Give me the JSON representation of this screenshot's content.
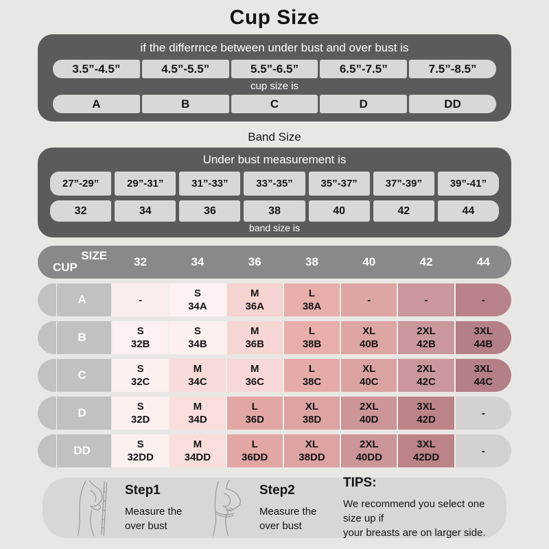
{
  "cup_section": {
    "title": "Cup Size",
    "condition": "if the differrnce between under bust and over bust is",
    "ranges": [
      "3.5”-4.5”",
      "4.5”-5.5”",
      "5.5”-6.5”",
      "6.5”-7.5”",
      "7.5”-8.5”"
    ],
    "result_label": "cup size is",
    "cups": [
      "A",
      "B",
      "C",
      "D",
      "DD"
    ]
  },
  "band_section": {
    "title": "Band Size",
    "condition": "Under bust measurement is",
    "ranges": [
      "27”-29”",
      "29”-31”",
      "31”-33”",
      "33”-35”",
      "35”-37”",
      "37”-39”",
      "39”-41”"
    ],
    "sizes": [
      "32",
      "34",
      "36",
      "38",
      "40",
      "42",
      "44"
    ],
    "result_label": "band size is"
  },
  "matrix": {
    "corner_top": "SIZE",
    "corner_bottom": "CUP",
    "columns": [
      "32",
      "34",
      "36",
      "38",
      "40",
      "42",
      "44"
    ],
    "rows": [
      {
        "cup": "A",
        "cells": [
          {
            "size": "-",
            "code": "",
            "bg": "#fbedec"
          },
          {
            "size": "S",
            "code": "34A",
            "bg": "#fdf2f1"
          },
          {
            "size": "M",
            "code": "36A",
            "bg": "#f5d3d1"
          },
          {
            "size": "L",
            "code": "38A",
            "bg": "#e7aeac"
          },
          {
            "size": "-",
            "code": "",
            "bg": "#dda5a4"
          },
          {
            "size": "-",
            "code": "",
            "bg": "#c9979c"
          },
          {
            "size": "-",
            "code": "",
            "bg": "#b98189"
          }
        ]
      },
      {
        "cup": "B",
        "cells": [
          {
            "size": "S",
            "code": "32B",
            "bg": "#fdf2f1"
          },
          {
            "size": "S",
            "code": "34B",
            "bg": "#fdf0ef"
          },
          {
            "size": "M",
            "code": "36B",
            "bg": "#f6d6d4"
          },
          {
            "size": "L",
            "code": "38B",
            "bg": "#e7aeac"
          },
          {
            "size": "XL",
            "code": "40B",
            "bg": "#dda5a4"
          },
          {
            "size": "2XL",
            "code": "42B",
            "bg": "#c9979c"
          },
          {
            "size": "3XL",
            "code": "44B",
            "bg": "#b57f87"
          }
        ]
      },
      {
        "cup": "C",
        "cells": [
          {
            "size": "S",
            "code": "32C",
            "bg": "#fdf1f0"
          },
          {
            "size": "M",
            "code": "34C",
            "bg": "#f8dbd9"
          },
          {
            "size": "M",
            "code": "36C",
            "bg": "#f7d8d6"
          },
          {
            "size": "L",
            "code": "38C",
            "bg": "#e5abaa"
          },
          {
            "size": "XL",
            "code": "40C",
            "bg": "#dba2a2"
          },
          {
            "size": "2XL",
            "code": "42C",
            "bg": "#c9979c"
          },
          {
            "size": "3XL",
            "code": "44C",
            "bg": "#b57f87"
          }
        ]
      },
      {
        "cup": "D",
        "cells": [
          {
            "size": "S",
            "code": "32D",
            "bg": "#fdf1f0"
          },
          {
            "size": "M",
            "code": "34D",
            "bg": "#f9dedc"
          },
          {
            "size": "L",
            "code": "36D",
            "bg": "#e2a7a5"
          },
          {
            "size": "XL",
            "code": "38D",
            "bg": "#dca3a2"
          },
          {
            "size": "2XL",
            "code": "40D",
            "bg": "#cc9598"
          },
          {
            "size": "3XL",
            "code": "42D",
            "bg": "#bc8389"
          },
          {
            "size": "-",
            "code": "",
            "bg": "#d2d1d0"
          }
        ]
      },
      {
        "cup": "DD",
        "cells": [
          {
            "size": "S",
            "code": "32DD",
            "bg": "#fdf1f0"
          },
          {
            "size": "M",
            "code": "34DD",
            "bg": "#f9dedc"
          },
          {
            "size": "L",
            "code": "36DD",
            "bg": "#e2a7a5"
          },
          {
            "size": "XL",
            "code": "38DD",
            "bg": "#dca3a2"
          },
          {
            "size": "2XL",
            "code": "40DD",
            "bg": "#cc9598"
          },
          {
            "size": "3XL",
            "code": "42DD",
            "bg": "#bc8389"
          },
          {
            "size": "-",
            "code": "",
            "bg": "#d2d1d0"
          }
        ]
      }
    ]
  },
  "footer": {
    "step1": {
      "title": "Step1",
      "line1": "Measure the",
      "line2": "over bust"
    },
    "step2": {
      "title": "Step2",
      "line1": "Measure the",
      "line2": "over bust"
    },
    "tips": {
      "title": "TIPS:",
      "line1": "We recommend you select one size up if",
      "line2": "your breasts are on larger side."
    }
  },
  "colors": {
    "page_bg": "#e9e7e4",
    "panel_dark": "#5c5a5a",
    "pill_bg": "#dad8d6",
    "header_bar": "#8a8888",
    "row_label_bg": "#c2c1c0",
    "footer_bg": "#d9d7d5",
    "ink": "#141414",
    "white_text": "#ffffff"
  }
}
